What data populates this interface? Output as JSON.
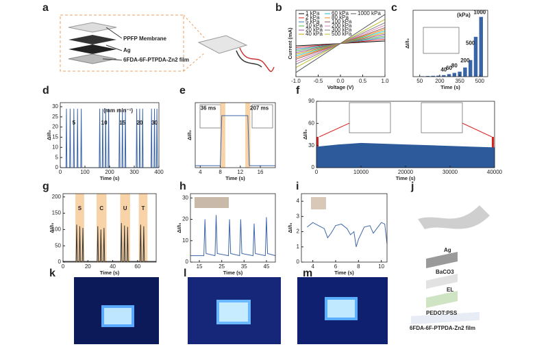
{
  "labels": [
    "a",
    "b",
    "c",
    "d",
    "e",
    "f",
    "g",
    "h",
    "i",
    "j",
    "k",
    "l",
    "m"
  ],
  "diagram_a": {
    "layers": [
      "PPFP Membrane",
      "Ag",
      "6FDA-6F-PTPDA-Zn2 film"
    ]
  },
  "diagram_j": {
    "layers": [
      "Ag",
      "BaCO3",
      "EL",
      "PEDOT:PSS",
      "6FDA-6F-PTPDA-Zn2 film"
    ]
  },
  "chart_data": [
    {
      "type": "line",
      "xlabel": "Voltage (V)",
      "ylabel": "Current (mA)",
      "xlim": [
        -1,
        1
      ],
      "ylim": [
        -2,
        2
      ],
      "xticks": [
        {
          "value": -1,
          "label": "-1.0"
        },
        {
          "value": -0.5,
          "label": "-0.5"
        },
        {
          "value": 0,
          "label": "0.0"
        },
        {
          "value": 0.5,
          "label": "0.5"
        },
        {
          "value": 1,
          "label": "1.0"
        }
      ],
      "series": [
        {
          "name": "1 kPa",
          "color": "#000000",
          "x": [
            -1,
            1
          ],
          "values": [
            -0.15,
            0.15
          ]
        },
        {
          "name": "2 kPa",
          "color": "#e41a1c",
          "x": [
            -1,
            1
          ],
          "values": [
            -0.25,
            0.25
          ]
        },
        {
          "name": "5 kPa",
          "color": "#377eb8",
          "x": [
            -1,
            1
          ],
          "values": [
            -0.35,
            0.35
          ]
        },
        {
          "name": "10 kPa",
          "color": "#4daf4a",
          "x": [
            -1,
            1
          ],
          "values": [
            -0.45,
            0.45
          ]
        },
        {
          "name": "20 kPa",
          "color": "#984ea3",
          "x": [
            -1,
            1
          ],
          "values": [
            -0.55,
            0.55
          ]
        },
        {
          "name": "40 kPa",
          "color": "#c8a000",
          "x": [
            -1,
            1
          ],
          "values": [
            -0.65,
            0.65
          ]
        },
        {
          "name": "60 kPa",
          "color": "#17becf",
          "x": [
            -1,
            1
          ],
          "values": [
            -0.75,
            0.75
          ]
        },
        {
          "name": "80 kPa",
          "color": "#ff7f0e",
          "x": [
            -1,
            1
          ],
          "values": [
            -0.85,
            0.85
          ]
        },
        {
          "name": "100 kPa",
          "color": "#8c564b",
          "x": [
            -1,
            1
          ],
          "values": [
            -0.95,
            0.95
          ]
        },
        {
          "name": "200 kPa",
          "color": "#e377c2",
          "x": [
            -1,
            1
          ],
          "values": [
            -1.1,
            1.1
          ]
        },
        {
          "name": "300 kPa",
          "color": "#7f7f7f",
          "x": [
            -1,
            1
          ],
          "values": [
            -1.25,
            1.25
          ]
        },
        {
          "name": "500 kPa",
          "color": "#bcbd22",
          "x": [
            -1,
            1
          ],
          "values": [
            -1.45,
            1.45
          ]
        },
        {
          "name": "1000 kPa",
          "color": "#555555",
          "x": [
            -1,
            1
          ],
          "values": [
            -1.75,
            1.75
          ]
        }
      ]
    },
    {
      "type": "bar",
      "xlabel": "Time (s)",
      "ylabel": "ΔI/I₀",
      "xlim": [
        0,
        560
      ],
      "ylim": [
        0,
        800
      ],
      "xticks": [
        50,
        200,
        350,
        500
      ],
      "series": [
        {
          "color": "#3a64a8",
          "x": [
            70,
            110,
            150,
            190,
            230,
            270,
            310,
            350,
            390,
            430,
            470,
            510
          ],
          "values": [
            5,
            8,
            10,
            12,
            18,
            30,
            45,
            60,
            110,
            200,
            480,
            720
          ]
        }
      ],
      "annotations": [
        {
          "text": "(kPa)",
          "x": 380,
          "y": 740
        },
        {
          "text": "40",
          "x": 230,
          "y": 80
        },
        {
          "text": "60",
          "x": 270,
          "y": 100
        },
        {
          "text": "80",
          "x": 310,
          "y": 130
        },
        {
          "text": "200",
          "x": 390,
          "y": 190
        },
        {
          "text": "500",
          "x": 430,
          "y": 400
        },
        {
          "text": "1000",
          "x": 500,
          "y": 770
        }
      ]
    },
    {
      "type": "line",
      "xlabel": "Time (s)",
      "ylabel": "ΔI/I₀",
      "xlim": [
        0,
        400
      ],
      "ylim": [
        0,
        32
      ],
      "xticks": [
        0,
        100,
        200,
        300,
        400
      ],
      "yticks": [
        0,
        5,
        10,
        15,
        20,
        25,
        30
      ],
      "series": [
        {
          "color": "#3a64a8",
          "x": [
            0,
            23,
            25,
            27,
            38,
            40,
            42,
            53,
            55,
            57,
            68,
            70,
            72,
            83,
            85,
            87,
            158,
            160,
            162,
            170,
            172,
            174,
            182,
            184,
            186,
            194,
            196,
            198,
            238,
            240,
            242,
            250,
            252,
            254,
            262,
            264,
            266,
            308,
            310,
            312,
            320,
            322,
            324,
            332,
            334,
            336,
            368,
            370,
            372,
            380,
            382,
            384,
            390,
            392,
            394,
            400
          ],
          "values": [
            0,
            0,
            29,
            0,
            0,
            29,
            0,
            0,
            29,
            0,
            0,
            29,
            0,
            0,
            29,
            0,
            0,
            29,
            0,
            0,
            29,
            0,
            0,
            29,
            0,
            0,
            29,
            0,
            0,
            29,
            0,
            0,
            29,
            0,
            0,
            29,
            0,
            0,
            29,
            0,
            0,
            29,
            0,
            0,
            29,
            0,
            0,
            29,
            0,
            0,
            29,
            0,
            0,
            29,
            0,
            0
          ]
        }
      ],
      "annotations": [
        {
          "text": "(mm min⁻¹)",
          "x": 235,
          "y": 28
        },
        {
          "text": "5",
          "x": 55,
          "y": 22
        },
        {
          "text": "10",
          "x": 178,
          "y": 22
        },
        {
          "text": "15",
          "x": 252,
          "y": 22
        },
        {
          "text": "20",
          "x": 322,
          "y": 22
        },
        {
          "text": "30",
          "x": 382,
          "y": 22
        }
      ]
    },
    {
      "type": "line",
      "xlabel": "Time (s)",
      "ylabel": "ΔI/I₀",
      "xlim": [
        3,
        19
      ],
      "ylim": [
        0,
        10
      ],
      "xticks": [
        4,
        8,
        12,
        16
      ],
      "bands": [
        {
          "x": [
            8,
            9
          ]
        },
        {
          "x": [
            13,
            14
          ]
        }
      ],
      "series": [
        {
          "color": "#3a64a8",
          "x": [
            3,
            8,
            8.3,
            13.5,
            13.8,
            19
          ],
          "values": [
            0.3,
            0.3,
            8,
            8,
            0.3,
            0.3
          ]
        }
      ],
      "annotations": [
        {
          "text": "36 ms",
          "x": 5.6,
          "y": 9.1
        },
        {
          "text": "207 ms",
          "x": 15.8,
          "y": 9.1
        }
      ]
    },
    {
      "type": "area",
      "xlabel": "Time (s)",
      "ylabel": "ΔI/I₀",
      "xlim": [
        0,
        40000
      ],
      "ylim": [
        0,
        90
      ],
      "xticks": [
        0,
        10000,
        20000,
        30000,
        40000
      ],
      "yticks": [
        0,
        30,
        60,
        90
      ],
      "series": [
        {
          "color": "#2d5a9a",
          "x": [
            0,
            5000,
            10000,
            15000,
            20000,
            25000,
            30000,
            35000,
            40000
          ],
          "values": [
            28,
            31,
            33,
            32,
            31,
            30,
            29,
            28,
            27
          ]
        }
      ]
    },
    {
      "type": "line",
      "xlabel": "Time (s)",
      "ylabel": "ΔI/I₀",
      "xlim": [
        0,
        75
      ],
      "ylim": [
        0,
        210
      ],
      "xticks": [
        0,
        20,
        40,
        60
      ],
      "yticks": [
        0,
        50,
        100,
        150,
        200
      ],
      "bands": [
        {
          "x": [
            10,
            17
          ],
          "label": "S"
        },
        {
          "x": [
            27,
            35
          ],
          "label": "C"
        },
        {
          "x": [
            46,
            54
          ],
          "label": "U"
        },
        {
          "x": [
            61,
            68
          ],
          "label": "T"
        }
      ],
      "series": [
        {
          "color": "#333333",
          "x": [
            0,
            10.5,
            11,
            11.5,
            13,
            13.5,
            14,
            15.5,
            16,
            16.5,
            27.5,
            28,
            28.5,
            30,
            30.5,
            31,
            32.5,
            33,
            33.5,
            46.5,
            47,
            47.5,
            49,
            49.5,
            50,
            51.5,
            52,
            52.5,
            62,
            62.5,
            63,
            64.5,
            65,
            65.5,
            75
          ],
          "values": [
            2,
            2,
            115,
            2,
            2,
            110,
            2,
            2,
            105,
            2,
            2,
            110,
            2,
            2,
            100,
            2,
            2,
            105,
            2,
            2,
            120,
            2,
            2,
            112,
            2,
            2,
            108,
            2,
            2,
            115,
            2,
            2,
            110,
            2,
            2
          ]
        }
      ]
    },
    {
      "type": "line",
      "xlabel": "Time (s)",
      "ylabel": "ΔI/I₀",
      "xlim": [
        11,
        49
      ],
      "ylim": [
        0,
        32
      ],
      "xticks": [
        15,
        25,
        35,
        45
      ],
      "yticks": [
        0,
        10,
        20,
        30
      ],
      "series": [
        {
          "color": "#3a64a8",
          "x": [
            11,
            17,
            17.5,
            18,
            22,
            22.5,
            23,
            28,
            28.5,
            29,
            33,
            33.5,
            34,
            39,
            39.5,
            40,
            44.5,
            45,
            45.5,
            49
          ],
          "values": [
            3,
            3,
            20,
            4,
            3,
            22,
            4,
            3,
            20,
            4,
            3,
            20,
            4,
            3,
            18,
            4,
            3,
            21,
            4,
            3
          ]
        }
      ]
    },
    {
      "type": "line",
      "xlabel": "Time (s)",
      "ylabel": "ΔI/I₀",
      "xlim": [
        3,
        10.5
      ],
      "ylim": [
        0,
        4.5
      ],
      "xticks": [
        4,
        6,
        8,
        10
      ],
      "yticks": [
        0,
        1,
        2,
        3,
        4
      ],
      "series": [
        {
          "color": "#3a64a8",
          "x": [
            3.5,
            4,
            4.5,
            5,
            5.3,
            5.6,
            6,
            6.5,
            7,
            7.3,
            7.6,
            7.8,
            8,
            8.5,
            9,
            9.3,
            9.6,
            10,
            10.3,
            10.5
          ],
          "values": [
            2.3,
            2.6,
            2.4,
            2.2,
            1.6,
            1.9,
            2.4,
            2.5,
            2.2,
            1.8,
            2.0,
            1.0,
            1.5,
            2.3,
            2.4,
            1.9,
            2.2,
            2.6,
            2.5,
            1.2
          ]
        }
      ]
    }
  ]
}
